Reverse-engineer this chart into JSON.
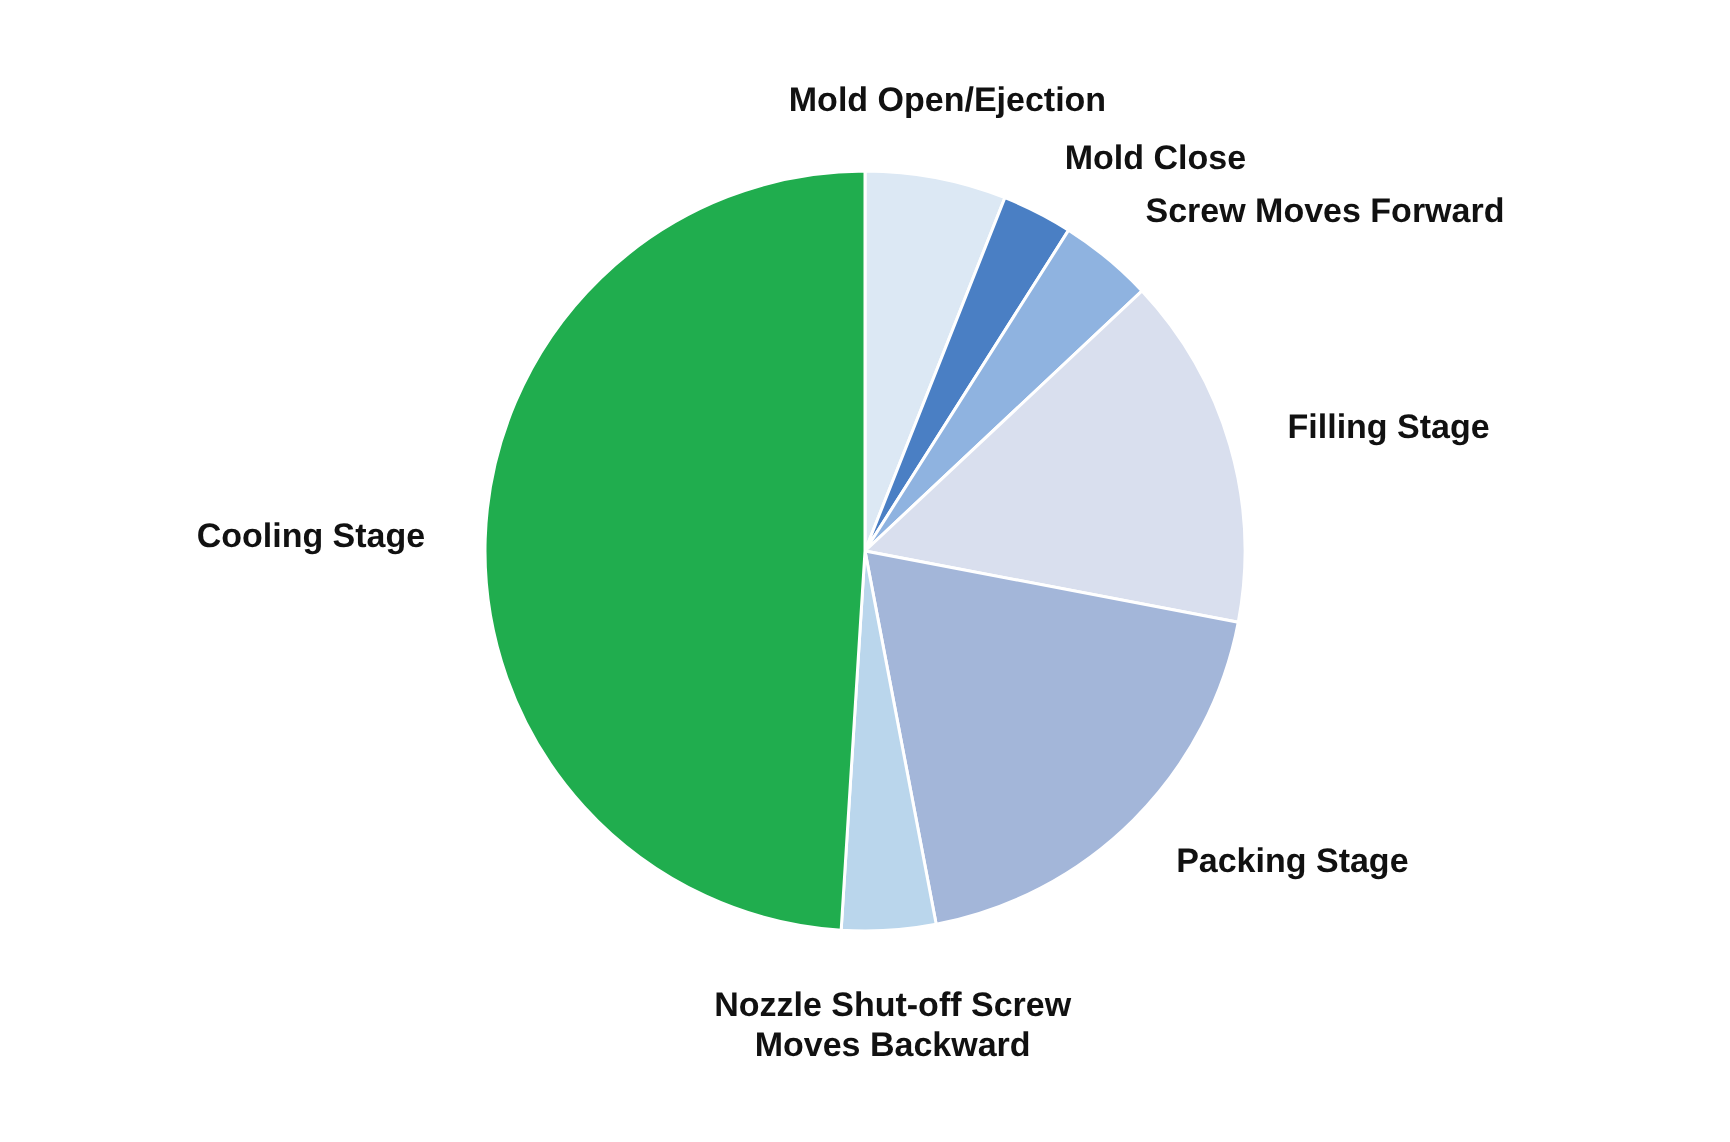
{
  "chart_data": {
    "type": "pie",
    "categories": [
      "Mold Open/Ejection",
      "Mold Close",
      "Screw Moves Forward",
      "Filling Stage",
      "Packing Stage",
      "Nozzle Shut-off Screw Moves Backward",
      "Cooling Stage"
    ],
    "values": [
      6,
      3,
      4,
      15,
      19,
      4,
      49
    ],
    "colors": [
      "#dce8f4",
      "#4a7fc4",
      "#8fb3e0",
      "#d9dfee",
      "#a3b6d9",
      "#bad6ec",
      "#20ad4e"
    ]
  }
}
